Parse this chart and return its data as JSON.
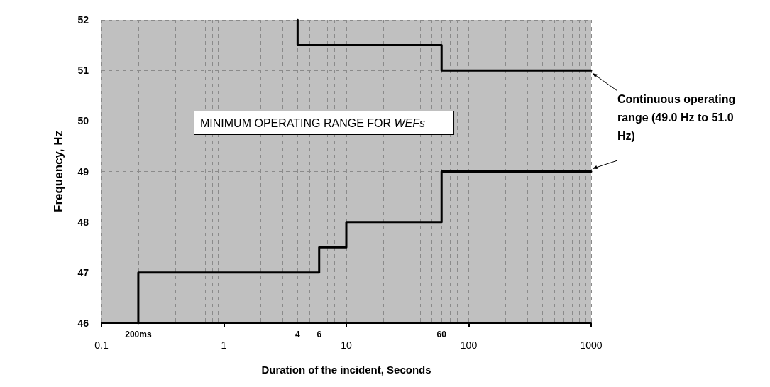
{
  "chart_data": {
    "type": "line",
    "xlabel": "Duration of the incident, Seconds",
    "ylabel": "Frequency, Hz",
    "annotations": [
      "MINIMUM OPERATING RANGE FOR WEFs",
      {
        "text": "Continuous operating range (49.0 Hz to 51.0 Hz)",
        "x": 1000,
        "y": 51
      },
      {
        "text": "200ms",
        "x": 0.2,
        "y": 46
      },
      {
        "text": "4",
        "x": 4
      },
      {
        "text": "6",
        "x": 6
      },
      {
        "text": "60",
        "x": 60
      }
    ],
    "series": [
      {
        "x": [
          4,
          4,
          60,
          60,
          1000
        ],
        "values": [
          52,
          51.5,
          51.5,
          51,
          51
        ],
        "color": "#000000"
      },
      {
        "x": [
          0.2,
          0.2,
          6,
          6,
          10,
          10,
          60,
          60,
          1000
        ],
        "values": [
          46,
          47,
          47,
          47.5,
          47.5,
          48,
          48,
          49,
          49
        ],
        "color": "#000000"
      }
    ],
    "log": "x",
    "xlim": [
      0.1,
      1000
    ],
    "xticks": [
      0.1,
      1,
      10,
      100,
      1000
    ],
    "ylim": [
      46,
      52
    ],
    "yticks": [
      46,
      47,
      48,
      49,
      50,
      51,
      52
    ],
    "grid": true,
    "marker": "none",
    "line_style": "solid"
  }
}
